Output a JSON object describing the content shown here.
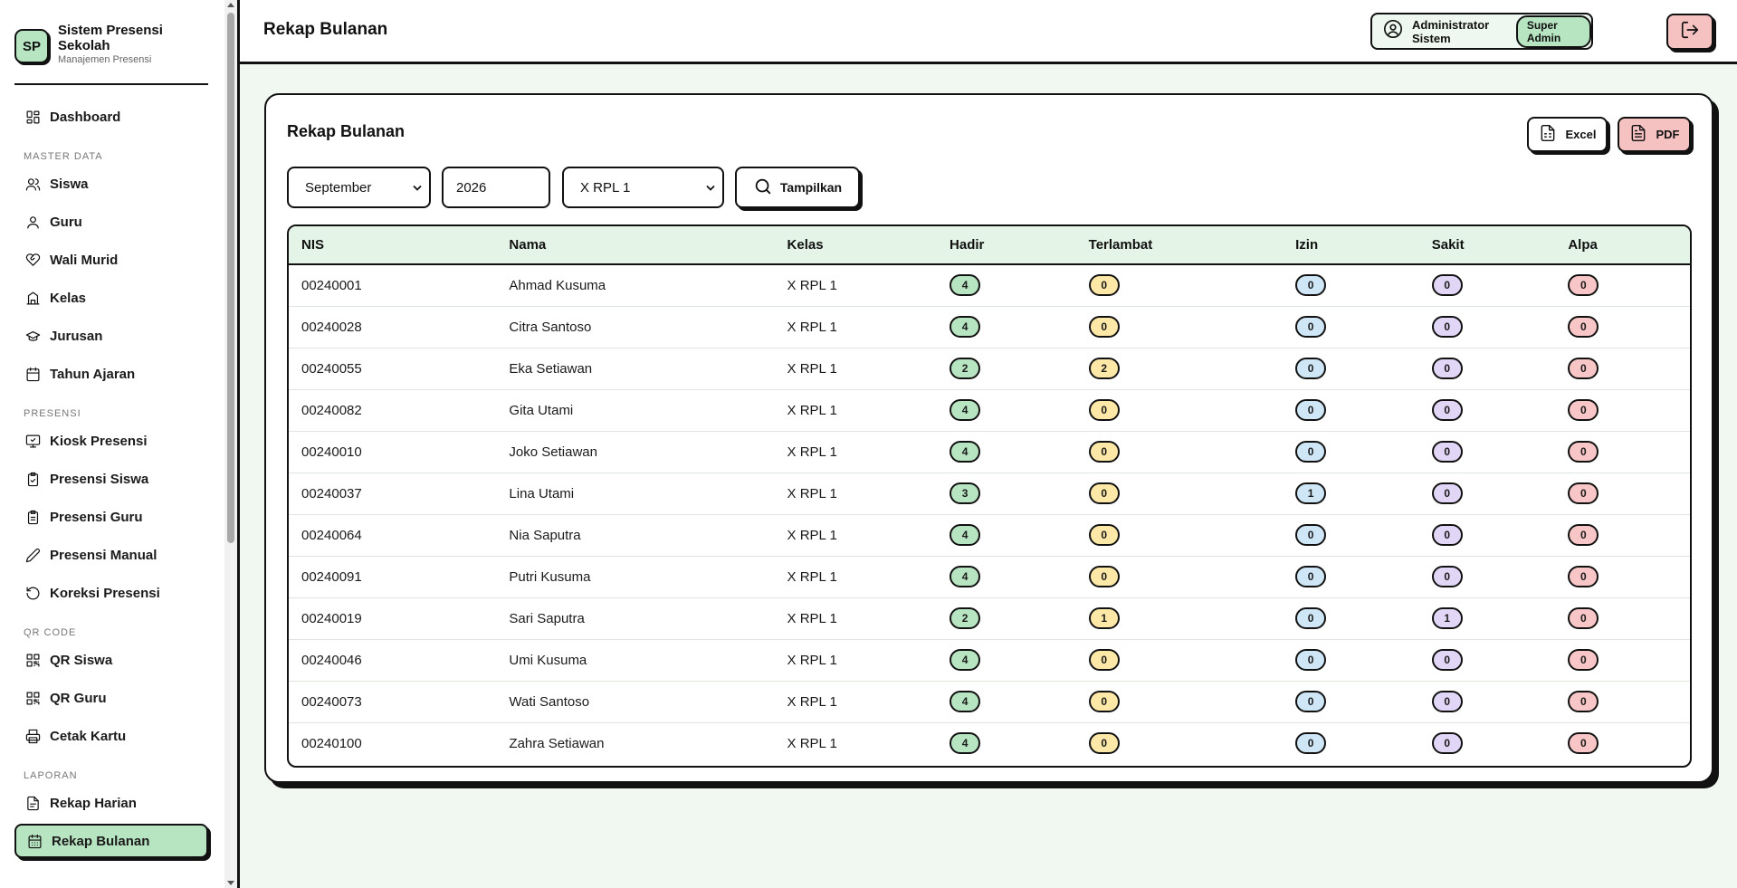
{
  "brand": {
    "logo": "SP",
    "title": "Sistem Presensi Sekolah",
    "subtitle": "Manajemen Presensi"
  },
  "sidebar": {
    "groups": [
      {
        "section": "",
        "items": [
          {
            "label": "Dashboard",
            "icon": "dashboard-icon"
          }
        ]
      },
      {
        "section": "MASTER DATA",
        "items": [
          {
            "label": "Siswa",
            "icon": "users-icon"
          },
          {
            "label": "Guru",
            "icon": "user-icon"
          },
          {
            "label": "Wali Murid",
            "icon": "heart-hand-icon"
          },
          {
            "label": "Kelas",
            "icon": "classroom-icon"
          },
          {
            "label": "Jurusan",
            "icon": "graduation-cap-icon"
          },
          {
            "label": "Tahun Ajaran",
            "icon": "calendar-icon"
          }
        ]
      },
      {
        "section": "PRESENSI",
        "items": [
          {
            "label": "Kiosk Presensi",
            "icon": "monitor-check-icon"
          },
          {
            "label": "Presensi Siswa",
            "icon": "clipboard-check-icon"
          },
          {
            "label": "Presensi Guru",
            "icon": "clipboard-list-icon"
          },
          {
            "label": "Presensi Manual",
            "icon": "pencil-icon"
          },
          {
            "label": "Koreksi Presensi",
            "icon": "rotate-ccw-icon"
          }
        ]
      },
      {
        "section": "QR CODE",
        "items": [
          {
            "label": "QR Siswa",
            "icon": "qr-code-icon"
          },
          {
            "label": "QR Guru",
            "icon": "qr-code-icon"
          },
          {
            "label": "Cetak Kartu",
            "icon": "printer-icon"
          }
        ]
      },
      {
        "section": "LAPORAN",
        "items": [
          {
            "label": "Rekap Harian",
            "icon": "document-icon"
          },
          {
            "label": "Rekap Bulanan",
            "icon": "calendar-days-icon",
            "active": true
          }
        ]
      }
    ]
  },
  "header": {
    "title": "Rekap Bulanan",
    "user_name": "Administrator Sistem",
    "role": "Super Admin"
  },
  "card": {
    "title": "Rekap Bulanan",
    "excel_label": "Excel",
    "pdf_label": "PDF"
  },
  "filters": {
    "month": "September",
    "year": "2026",
    "class": "X RPL 1",
    "submit_label": "Tampilkan"
  },
  "table": {
    "columns": [
      "NIS",
      "Nama",
      "Kelas",
      "Hadir",
      "Terlambat",
      "Izin",
      "Sakit",
      "Alpa"
    ],
    "rows": [
      [
        "00240001",
        "Ahmad Kusuma",
        "X RPL 1",
        "4",
        "0",
        "0",
        "0",
        "0"
      ],
      [
        "00240028",
        "Citra Santoso",
        "X RPL 1",
        "4",
        "0",
        "0",
        "0",
        "0"
      ],
      [
        "00240055",
        "Eka Setiawan",
        "X RPL 1",
        "2",
        "2",
        "0",
        "0",
        "0"
      ],
      [
        "00240082",
        "Gita Utami",
        "X RPL 1",
        "4",
        "0",
        "0",
        "0",
        "0"
      ],
      [
        "00240010",
        "Joko Setiawan",
        "X RPL 1",
        "4",
        "0",
        "0",
        "0",
        "0"
      ],
      [
        "00240037",
        "Lina Utami",
        "X RPL 1",
        "3",
        "0",
        "1",
        "0",
        "0"
      ],
      [
        "00240064",
        "Nia Saputra",
        "X RPL 1",
        "4",
        "0",
        "0",
        "0",
        "0"
      ],
      [
        "00240091",
        "Putri Kusuma",
        "X RPL 1",
        "4",
        "0",
        "0",
        "0",
        "0"
      ],
      [
        "00240019",
        "Sari Saputra",
        "X RPL 1",
        "2",
        "1",
        "0",
        "1",
        "0"
      ],
      [
        "00240046",
        "Umi Kusuma",
        "X RPL 1",
        "4",
        "0",
        "0",
        "0",
        "0"
      ],
      [
        "00240073",
        "Wati Santoso",
        "X RPL 1",
        "4",
        "0",
        "0",
        "0",
        "0"
      ],
      [
        "00240100",
        "Zahra Setiawan",
        "X RPL 1",
        "4",
        "0",
        "0",
        "0",
        "0"
      ]
    ]
  },
  "colors": {
    "accent": "#b7e4c1",
    "danger": "#f6c1c1",
    "hadir": "#b7e4c1",
    "terlambat": "#fde8a8",
    "izin": "#cfe6f7",
    "sakit": "#e2d6f6",
    "alpa": "#f8c6c6"
  }
}
